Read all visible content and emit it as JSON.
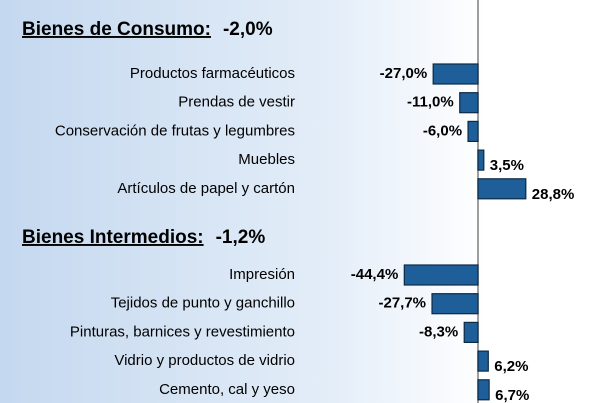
{
  "chart_data": [
    {
      "type": "bar",
      "orientation": "horizontal",
      "title": "Bienes de Consumo:",
      "subtitle": "-2,0%",
      "categories": [
        "Productos farmacéuticos",
        "Prendas de vestir",
        "Conservación de frutas y legumbres",
        "Muebles",
        "Artículos de papel y cartón"
      ],
      "values": [
        -27.0,
        -11.0,
        -6.0,
        3.5,
        28.8
      ],
      "value_labels": [
        "-27,0%",
        "-11,0%",
        "-6,0%",
        "3,5%",
        "28,8%"
      ],
      "color": "#1f5f99"
    },
    {
      "type": "bar",
      "orientation": "horizontal",
      "title": "Bienes Intermedios:",
      "subtitle": "-1,2%",
      "categories": [
        "Impresión",
        "Tejidos de punto y ganchillo",
        "Pinturas, barnices y revestimiento",
        "Vidrio y productos de vidrio",
        "Cemento, cal y yeso"
      ],
      "values": [
        -44.4,
        -27.7,
        -8.3,
        6.2,
        6.7
      ],
      "value_labels": [
        "-44,4%",
        "-27,7%",
        "-8,3%",
        "6,2%",
        "6,7%"
      ],
      "color": "#1f5f99"
    }
  ]
}
